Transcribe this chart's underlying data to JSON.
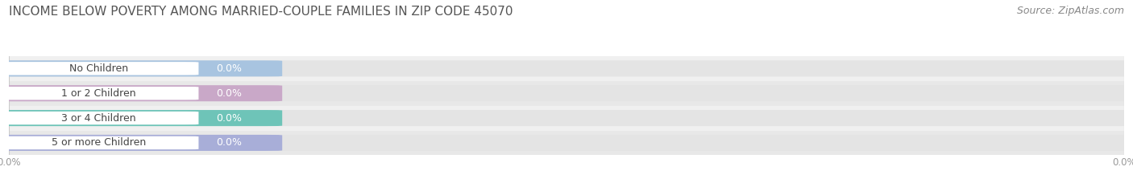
{
  "title": "INCOME BELOW POVERTY AMONG MARRIED-COUPLE FAMILIES IN ZIP CODE 45070",
  "source": "Source: ZipAtlas.com",
  "categories": [
    "No Children",
    "1 or 2 Children",
    "3 or 4 Children",
    "5 or more Children"
  ],
  "values": [
    0.0,
    0.0,
    0.0,
    0.0
  ],
  "bar_colors": [
    "#a8c4e0",
    "#c9a8c8",
    "#6ec4b8",
    "#a8aed8"
  ],
  "bar_bg_color": "#e4e4e4",
  "background_color": "#ffffff",
  "title_fontsize": 11,
  "label_fontsize": 9,
  "value_fontsize": 9,
  "source_fontsize": 9,
  "title_color": "#555555",
  "label_color": "#444444",
  "value_color": "#ffffff",
  "source_color": "#888888",
  "bar_height": 0.62,
  "row_bg_colors": [
    "#f0f0f0",
    "#e8e8e8"
  ],
  "white_pill_color": "#ffffff",
  "xtick_color": "#999999"
}
